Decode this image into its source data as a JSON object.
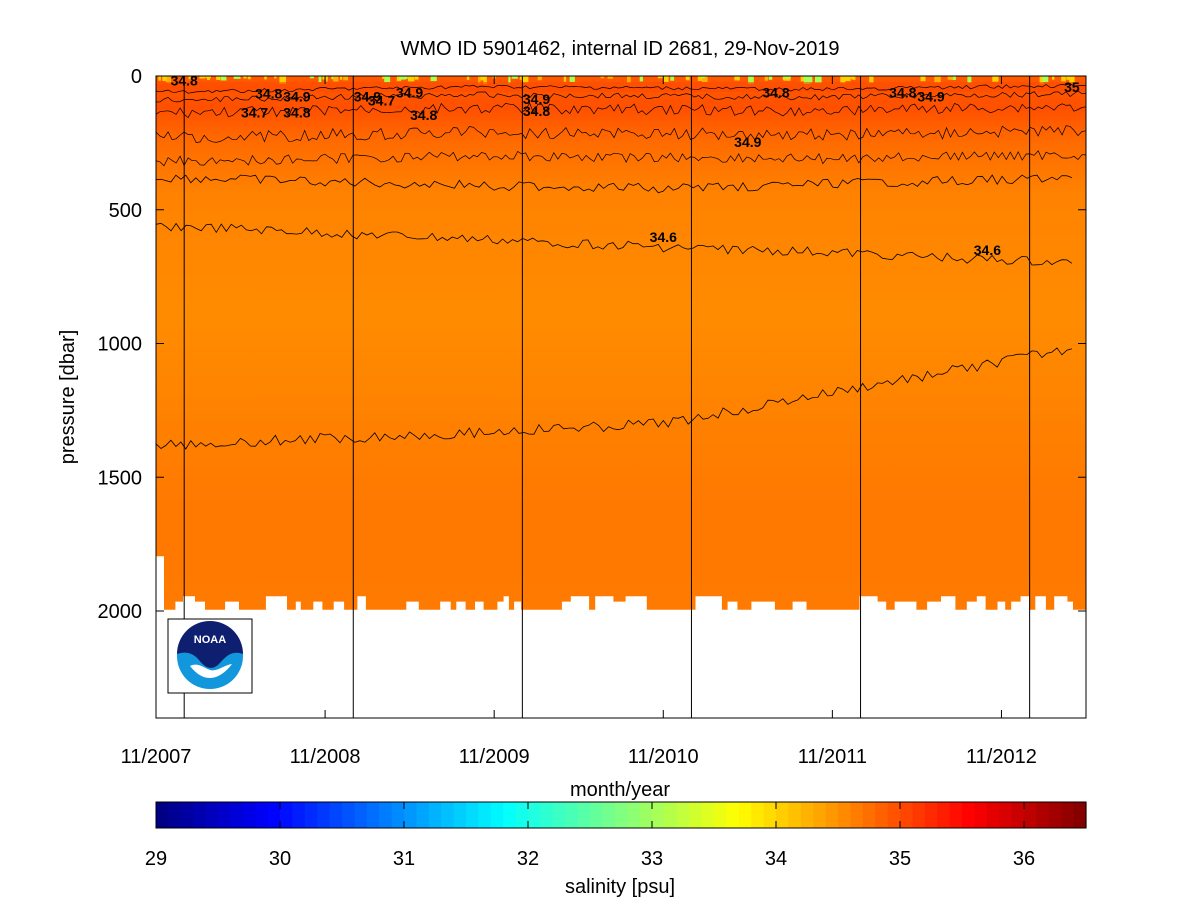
{
  "chart_data": {
    "type": "heatmap",
    "title": "WMO ID 5901462, internal ID 2681, 29-Nov-2019",
    "xlabel": "month/year",
    "ylabel": "pressure [dbar]",
    "x_ticks": [
      "11/2007",
      "11/2008",
      "11/2009",
      "11/2010",
      "11/2011",
      "11/2012"
    ],
    "x_range": [
      "11/2007",
      "05/2013"
    ],
    "y_ticks": [
      0,
      500,
      1000,
      1500,
      2000
    ],
    "ylim": [
      0,
      2400
    ],
    "y_reversed": true,
    "colorbar": {
      "label": "salinity [psu]",
      "ticks": [
        29,
        30,
        31,
        32,
        33,
        34,
        35,
        36
      ],
      "range": [
        29,
        36.5
      ],
      "colormap": "jet"
    },
    "profile_separator_dates": [
      "01/2008",
      "01/2009",
      "01/2010",
      "01/2011",
      "01/2012",
      "01/2013"
    ],
    "contours": [
      {
        "level": 34.6,
        "depths_dbar": [
          560,
          640,
          660,
          700
        ],
        "x": [
          "11/2007",
          "11/2010",
          "11/2011",
          "04/2013"
        ]
      },
      {
        "level": 34.6,
        "depths_dbar": [
          1380,
          1330,
          1300,
          1020
        ],
        "x": [
          "11/2007",
          "11/2009",
          "11/2010",
          "04/2013"
        ]
      },
      {
        "level": 34.9,
        "depths_dbar": [
          380,
          410,
          420,
          380
        ],
        "x": [
          "11/2007",
          "11/2009",
          "11/2010",
          "04/2013"
        ]
      }
    ],
    "contour_labels": [
      {
        "text": "34.8",
        "x": "01/2008",
        "p": 35
      },
      {
        "text": "34.8",
        "x": "07/2008",
        "p": 85
      },
      {
        "text": "34.9",
        "x": "09/2008",
        "p": 95
      },
      {
        "text": "34.7",
        "x": "06/2008",
        "p": 155
      },
      {
        "text": "34.8",
        "x": "09/2008",
        "p": 155
      },
      {
        "text": "34.9",
        "x": "02/2009",
        "p": 95
      },
      {
        "text": "34.7",
        "x": "03/2009",
        "p": 110
      },
      {
        "text": "34.9",
        "x": "05/2009",
        "p": 80
      },
      {
        "text": "34.8",
        "x": "06/2009",
        "p": 165
      },
      {
        "text": "34.9",
        "x": "02/2010",
        "p": 105
      },
      {
        "text": "34.8",
        "x": "02/2010",
        "p": 150
      },
      {
        "text": "34.9",
        "x": "05/2011",
        "p": 265
      },
      {
        "text": "34.8",
        "x": "07/2011",
        "p": 80
      },
      {
        "text": "34.6",
        "x": "11/2010",
        "p": 620
      },
      {
        "text": "34.8",
        "x": "04/2012",
        "p": 80
      },
      {
        "text": "34.9",
        "x": "06/2012",
        "p": 95
      },
      {
        "text": "34.6",
        "x": "10/2012",
        "p": 670
      },
      {
        "text": "35",
        "x": "04/2013",
        "p": 60
      }
    ],
    "salinity_profile_psu": [
      {
        "p": 0,
        "s": 34.9
      },
      {
        "p": 150,
        "s": 35.0
      },
      {
        "p": 400,
        "s": 34.8
      },
      {
        "p": 700,
        "s": 34.6
      },
      {
        "p": 1400,
        "s": 34.65
      },
      {
        "p": 2000,
        "s": 34.7
      }
    ],
    "noaa_logo_text": "NOAA"
  }
}
